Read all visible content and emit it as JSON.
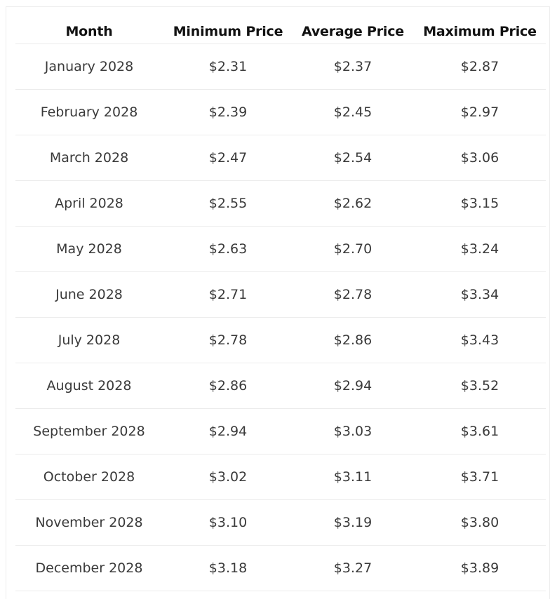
{
  "table": {
    "header": [
      "Month",
      "Minimum Price",
      "Average Price",
      "Maximum Price"
    ],
    "rows": [
      [
        "January 2028",
        "$2.31",
        "$2.37",
        "$2.87"
      ],
      [
        "February 2028",
        "$2.39",
        "$2.45",
        "$2.97"
      ],
      [
        "March 2028",
        "$2.47",
        "$2.54",
        "$3.06"
      ],
      [
        "April 2028",
        "$2.55",
        "$2.62",
        "$3.15"
      ],
      [
        "May 2028",
        "$2.63",
        "$2.70",
        "$3.24"
      ],
      [
        "June 2028",
        "$2.71",
        "$2.78",
        "$3.34"
      ],
      [
        "July 2028",
        "$2.78",
        "$2.86",
        "$3.43"
      ],
      [
        "August 2028",
        "$2.86",
        "$2.94",
        "$3.52"
      ],
      [
        "September 2028",
        "$2.94",
        "$3.03",
        "$3.61"
      ],
      [
        "October 2028",
        "$3.02",
        "$3.11",
        "$3.71"
      ],
      [
        "November 2028",
        "$3.10",
        "$3.19",
        "$3.80"
      ],
      [
        "December 2028",
        "$3.18",
        "$3.27",
        "$3.89"
      ]
    ]
  }
}
